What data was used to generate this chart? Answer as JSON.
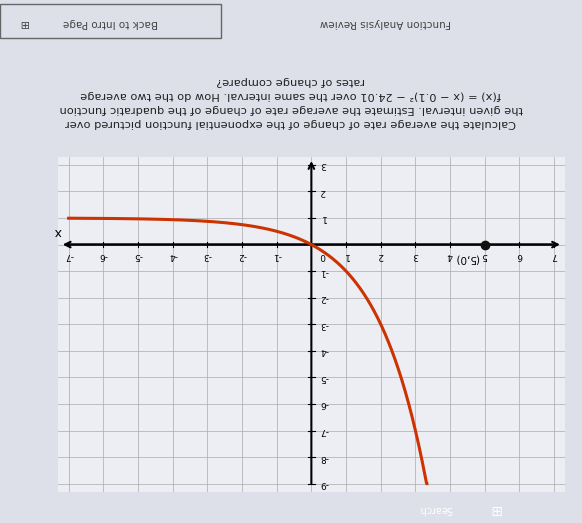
{
  "title_lines": [
    "Calculate the average rate of change of the exponential function pictured over",
    "the given interval. Estimate the average rate of change of the quadratic function",
    "f(x) = (x − 0.1)² − 24.01 over the same interval. How do the two average",
    "rates of change compare?"
  ],
  "bg_color": "#dde0e8",
  "graph_bg": "#eceef4",
  "curve_color": "#cc3300",
  "point_color": "#111111",
  "point_x": 5,
  "point_y": 0,
  "point_label": "(5,0)",
  "xmin": -7,
  "xmax": 7,
  "ymin": -9,
  "ymax": 3,
  "xticks": [
    -7,
    -6,
    -5,
    -4,
    -3,
    -2,
    -1,
    1,
    2,
    3,
    4,
    5,
    6,
    7
  ],
  "yticks": [
    -9,
    -8,
    -7,
    -6,
    -5,
    -4,
    -3,
    -2,
    -1,
    1,
    2,
    3
  ],
  "footer_left": "Function Analysis Review",
  "footer_right": "Back to Intro Page",
  "footer_icon": "⊞",
  "taskbar_color": "#8B0000",
  "teal_color": "#00b8c8",
  "search_text": "Search",
  "x_label": "x"
}
